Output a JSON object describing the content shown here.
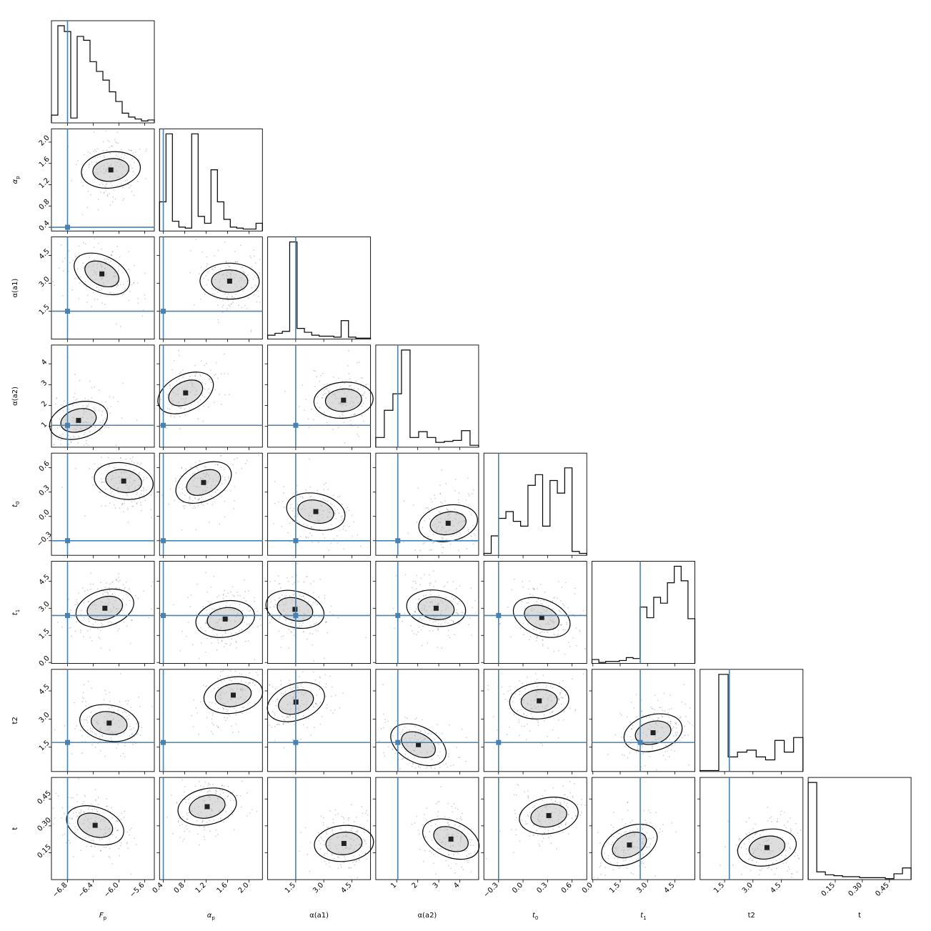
{
  "chart_data": {
    "type": "corner",
    "truth_color": "#4682b4",
    "contour_color": "#000000",
    "parameters": [
      {
        "key": "Fp",
        "label": "F_p",
        "sub": "p",
        "xlim": [
          -7.05,
          -5.45
        ],
        "ticks": [
          "−6.8",
          "−6.4",
          "−6.0",
          "−5.6"
        ],
        "tick_values": [
          -6.8,
          -6.4,
          -6.0,
          -5.6
        ],
        "truth": -6.8
      },
      {
        "key": "alpha_p",
        "label": "α_p",
        "sub": "p",
        "xlim": [
          0.33,
          2.25
        ],
        "ticks": [
          "0.4",
          "0.8",
          "1.2",
          "1.6",
          "2.0"
        ],
        "tick_values": [
          0.4,
          0.8,
          1.2,
          1.6,
          2.0
        ],
        "truth": 0.4
      },
      {
        "key": "alpha_a1",
        "label": "α(a1)",
        "sub": "",
        "xlim": [
          0.0,
          5.5
        ],
        "ticks": [
          "1.5",
          "3.0",
          "4.5"
        ],
        "tick_values": [
          1.5,
          3.0,
          4.5
        ],
        "truth": 1.5
      },
      {
        "key": "alpha_a2",
        "label": "α(a2)",
        "sub": "",
        "xlim": [
          0.0,
          4.9
        ],
        "ticks": [
          "1",
          "2",
          "3",
          "4"
        ],
        "tick_values": [
          1,
          2,
          3,
          4
        ],
        "truth": 1.05
      },
      {
        "key": "t0",
        "label": "t_0",
        "sub": "0",
        "xlim": [
          -0.48,
          0.78
        ],
        "ticks": [
          "−0.3",
          "0.0",
          "0.3",
          "0.6"
        ],
        "tick_values": [
          -0.3,
          0.0,
          0.3,
          0.6
        ],
        "truth": -0.3
      },
      {
        "key": "t1",
        "label": "t_1",
        "sub": "1",
        "xlim": [
          -0.05,
          5.6
        ],
        "ticks": [
          "0.0",
          "1.5",
          "3.0",
          "4.5"
        ],
        "tick_values": [
          0.0,
          1.5,
          3.0,
          4.5
        ],
        "truth": 2.6
      },
      {
        "key": "t2",
        "label": "t2",
        "sub": "",
        "xlim": [
          0.2,
          5.65
        ],
        "ticks": [
          "1.5",
          "3.0",
          "4.5"
        ],
        "tick_values": [
          1.5,
          3.0,
          4.5
        ],
        "truth": 1.75
      },
      {
        "key": "t",
        "label": "t",
        "sub": "",
        "xlim": [
          0.0,
          0.57
        ],
        "ticks": [
          "0.15",
          "0.30",
          "0.45"
        ],
        "tick_values": [
          0.15,
          0.3,
          0.45
        ],
        "truth": null
      }
    ],
    "histograms": [
      [
        0.08,
        1.0,
        0.94,
        0.05,
        0.89,
        0.85,
        0.63,
        0.53,
        0.44,
        0.32,
        0.22,
        0.1,
        0.06,
        0.04,
        0.02,
        0.03
      ],
      [
        0.3,
        1.0,
        0.1,
        0.04,
        0.03,
        1.0,
        0.15,
        0.08,
        0.63,
        0.3,
        0.12,
        0.04,
        0.03,
        0.02,
        0.02,
        0.08
      ],
      [
        0.04,
        0.06,
        0.08,
        1.0,
        0.11,
        0.07,
        0.04,
        0.03,
        0.03,
        0.02,
        0.19,
        0.02,
        0.01,
        0.01
      ],
      [
        0.1,
        0.38,
        0.55,
        1.0,
        0.1,
        0.16,
        0.1,
        0.05,
        0.06,
        0.07,
        0.17,
        0.02
      ],
      [
        0.02,
        0.2,
        0.38,
        0.45,
        0.35,
        0.3,
        0.72,
        0.83,
        0.3,
        0.77,
        0.64,
        0.9,
        0.04,
        0.02
      ],
      [
        0.04,
        0.01,
        0.02,
        0.02,
        0.03,
        0.06,
        0.05,
        0.58,
        0.47,
        0.68,
        0.62,
        0.83,
        1.0,
        0.85,
        0.46
      ],
      [
        0.01,
        0.01,
        1.0,
        0.15,
        0.2,
        0.22,
        0.15,
        0.12,
        0.32,
        0.2,
        0.35
      ],
      [
        1.0,
        0.08,
        0.05,
        0.04,
        0.03,
        0.03,
        0.02,
        0.02,
        0.02,
        0.01,
        0.06,
        0.12
      ]
    ]
  }
}
